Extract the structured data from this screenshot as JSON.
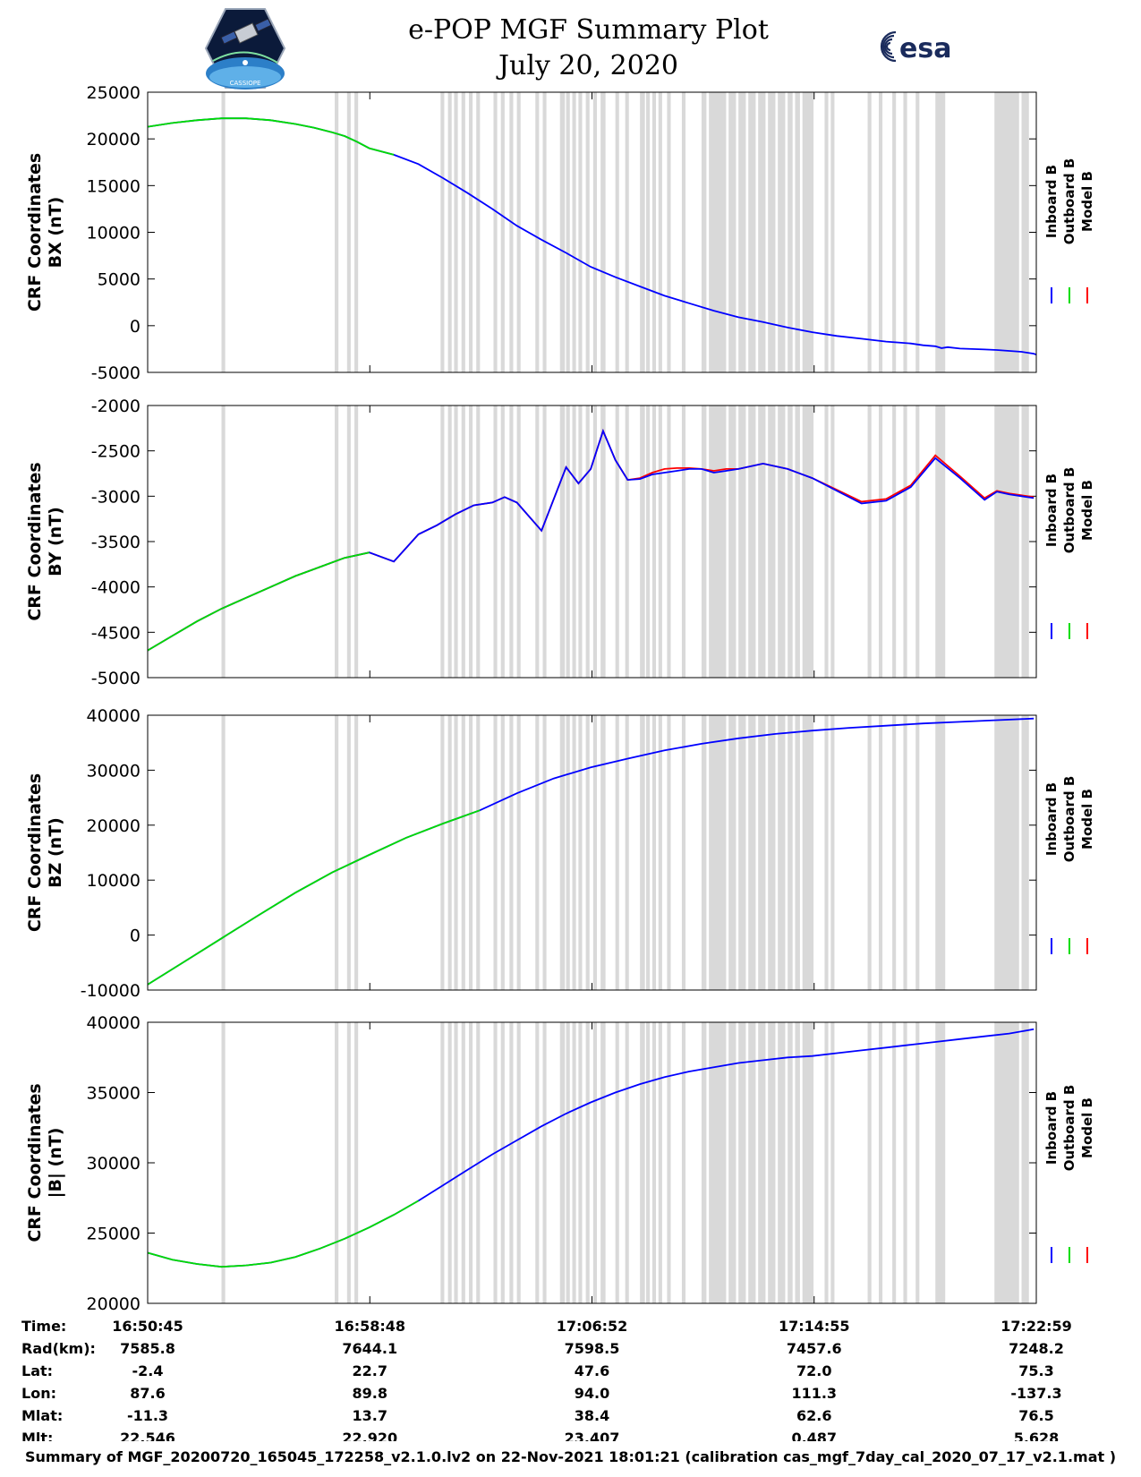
{
  "page": {
    "title": "e-POP MGF Summary Plot",
    "subtitle": "July 20, 2020",
    "esa_logo_text": "esa",
    "cassiope_logo_text": "CASSIOPE",
    "footer": "Summary of MGF_20200720_165045_172258_v2.1.0.lv2 on 22-Nov-2021 18:01:21 (calibration cas_mgf_7day_cal_2020_07_17_v2.1.mat )"
  },
  "colors": {
    "inboard": "#0000ff",
    "outboard": "#00dd00",
    "model": "#ff0000",
    "gap_shading": "#d9d9d9"
  },
  "chart_data": [
    {
      "type": "line",
      "ylabel": [
        "CRF Coordinates",
        "BX (nT)"
      ],
      "ylim": [
        -5000,
        25000
      ],
      "yticks": [
        "25000",
        "20000",
        "15000",
        "10000",
        "5000",
        "0",
        "-5000"
      ],
      "legend": [
        "Inboard B",
        "Outboard B",
        "Model B"
      ],
      "legend_position": "right",
      "x_minutes": [
        0,
        2,
        4,
        6,
        8,
        10,
        12,
        13.5,
        15,
        16,
        17,
        18,
        20,
        22,
        24,
        26,
        28,
        30,
        32,
        34,
        36,
        38,
        40,
        42,
        44,
        46,
        48,
        50,
        52,
        54,
        56,
        58,
        60,
        62,
        63,
        64,
        64.5,
        65,
        66,
        67,
        68,
        69,
        70,
        71,
        72,
        72.2
      ],
      "series": [
        {
          "name": "Inboard B",
          "values": [
            21300,
            21700,
            22000,
            22200,
            22200,
            22000,
            21600,
            21200,
            20700,
            20300,
            19700,
            19000,
            18300,
            17300,
            15800,
            14200,
            12500,
            10700,
            9200,
            7800,
            6300,
            5200,
            4200,
            3200,
            2400,
            1600,
            900,
            400,
            -200,
            -700,
            -1100,
            -1400,
            -1700,
            -1900,
            -2100,
            -2200,
            -2400,
            -2300,
            -2450,
            -2500,
            -2550,
            -2600,
            -2700,
            -2800,
            -3000,
            -3100
          ]
        },
        {
          "name": "Outboard B",
          "values": [
            21300,
            21700,
            22000,
            22200,
            22200,
            22000,
            21600,
            21200,
            20700,
            20300,
            19700,
            19000,
            18300
          ]
        }
      ]
    },
    {
      "type": "line",
      "ylabel": [
        "CRF Coordinates",
        "BY (nT)"
      ],
      "ylim": [
        -5000,
        -2000
      ],
      "yticks": [
        "-2000",
        "-2500",
        "-3000",
        "-3500",
        "-4000",
        "-4500",
        "-5000"
      ],
      "legend": [
        "Inboard B",
        "Outboard B",
        "Model B"
      ],
      "legend_position": "right",
      "x_minutes": [
        0,
        2,
        4,
        6,
        8,
        10,
        12,
        14,
        16,
        18,
        20,
        22,
        23.5,
        25,
        26.5,
        28,
        29,
        30,
        32,
        34,
        35,
        36,
        37,
        38,
        39,
        40,
        41,
        42,
        43,
        44,
        45,
        46,
        47,
        48,
        50,
        52,
        54,
        56,
        58,
        60,
        62,
        64,
        66,
        68,
        69,
        70,
        71,
        72
      ],
      "series": [
        {
          "name": "Inboard B",
          "values": [
            -4700,
            -4540,
            -4380,
            -4240,
            -4120,
            -4000,
            -3880,
            -3780,
            -3680,
            -3620,
            -3720,
            -3420,
            -3320,
            -3200,
            -3100,
            -3070,
            -3010,
            -3070,
            -3380,
            -2680,
            -2860,
            -2700,
            -2280,
            -2600,
            -2820,
            -2810,
            -2760,
            -2740,
            -2720,
            -2700,
            -2700,
            -2740,
            -2720,
            -2700,
            -2640,
            -2700,
            -2800,
            -2940,
            -3080,
            -3050,
            -2900,
            -2580,
            -2800,
            -3040,
            -2950,
            -2980,
            -3000,
            -3020
          ]
        },
        {
          "name": "Outboard B",
          "values": [
            -4700,
            -4540,
            -4380,
            -4240,
            -4120,
            -4000,
            -3880,
            -3780,
            -3680,
            -3620
          ]
        },
        {
          "name": "Model B",
          "values": [
            -4700,
            -4540,
            -4380,
            -4240,
            -4120,
            -4000,
            -3880,
            -3780,
            -3680,
            -3620,
            -3720,
            -3420,
            -3320,
            -3200,
            -3100,
            -3070,
            -3010,
            -3070,
            -3380,
            -2680,
            -2860,
            -2700,
            -2280,
            -2600,
            -2820,
            -2800,
            -2740,
            -2700,
            -2690,
            -2690,
            -2700,
            -2720,
            -2700,
            -2700,
            -2640,
            -2700,
            -2800,
            -2930,
            -3060,
            -3030,
            -2880,
            -2550,
            -2780,
            -3020,
            -2940,
            -2970,
            -2990,
            -3010
          ]
        }
      ]
    },
    {
      "type": "line",
      "ylabel": [
        "CRF Coordinates",
        "BZ (nT)"
      ],
      "ylim": [
        -10000,
        40000
      ],
      "yticks": [
        "40000",
        "30000",
        "20000",
        "10000",
        "0",
        "-10000"
      ],
      "legend": [
        "Inboard B",
        "Outboard B",
        "Model B"
      ],
      "legend_position": "right",
      "x_minutes": [
        0,
        3,
        6,
        9,
        12,
        15,
        18,
        21,
        24,
        27,
        30,
        33,
        36,
        39,
        42,
        45,
        48,
        51,
        54,
        57,
        60,
        63,
        66,
        69,
        72
      ],
      "series": [
        {
          "name": "Inboard B",
          "values": [
            -9000,
            -4800,
            -600,
            3600,
            7700,
            11400,
            14600,
            17700,
            20300,
            22700,
            25800,
            28500,
            30500,
            32100,
            33600,
            34800,
            35800,
            36600,
            37200,
            37700,
            38100,
            38500,
            38800,
            39100,
            39400
          ]
        },
        {
          "name": "Outboard B",
          "values": [
            -9000,
            -4800,
            -600,
            3600,
            7700,
            11400,
            14600,
            17700,
            20300,
            22700
          ]
        }
      ]
    },
    {
      "type": "line",
      "ylabel": [
        "CRF Coordinates",
        "|B| (nT)"
      ],
      "ylim": [
        20000,
        40000
      ],
      "yticks": [
        "40000",
        "35000",
        "30000",
        "25000",
        "20000"
      ],
      "legend": [
        "Inboard B",
        "Outboard B",
        "Model B"
      ],
      "legend_position": "right",
      "x_minutes": [
        0,
        2,
        4,
        6,
        8,
        10,
        12,
        14,
        16,
        18,
        20,
        22,
        24,
        26,
        28,
        30,
        32,
        34,
        36,
        38,
        40,
        42,
        44,
        46,
        48,
        50,
        52,
        54,
        56,
        58,
        60,
        62,
        64,
        66,
        68,
        70,
        72
      ],
      "series": [
        {
          "name": "Inboard B",
          "values": [
            23600,
            23100,
            22800,
            22600,
            22700,
            22900,
            23300,
            23900,
            24600,
            25400,
            26300,
            27300,
            28400,
            29500,
            30600,
            31600,
            32600,
            33500,
            34300,
            35000,
            35600,
            36100,
            36500,
            36800,
            37100,
            37300,
            37500,
            37600,
            37800,
            38000,
            38200,
            38400,
            38600,
            38800,
            39000,
            39200,
            39500
          ]
        },
        {
          "name": "Outboard B",
          "values": [
            23600,
            23100,
            22800,
            22600,
            22700,
            22900,
            23300,
            23900,
            24600,
            25400,
            26300,
            27300
          ]
        }
      ]
    }
  ],
  "shaded_intervals_minutes": [
    [
      6.0,
      6.3
    ],
    [
      15.2,
      15.5
    ],
    [
      16.2,
      16.5
    ],
    [
      16.8,
      17.1
    ],
    [
      23.8,
      24.1
    ],
    [
      24.4,
      24.7
    ],
    [
      24.9,
      25.2
    ],
    [
      25.5,
      25.8
    ],
    [
      26.1,
      26.4
    ],
    [
      26.7,
      27.0
    ],
    [
      28.1,
      28.4
    ],
    [
      28.7,
      29.0
    ],
    [
      29.4,
      29.7
    ],
    [
      30.0,
      30.3
    ],
    [
      31.5,
      31.8
    ],
    [
      32.1,
      32.4
    ],
    [
      33.5,
      33.9
    ],
    [
      34.0,
      34.3
    ],
    [
      34.5,
      34.8
    ],
    [
      35.0,
      35.3
    ],
    [
      35.6,
      35.9
    ],
    [
      36.2,
      36.5
    ],
    [
      36.8,
      37.2
    ],
    [
      38.0,
      38.3
    ],
    [
      38.8,
      39.1
    ],
    [
      40.0,
      40.4
    ],
    [
      40.5,
      40.8
    ],
    [
      41.0,
      41.3
    ],
    [
      41.5,
      41.8
    ],
    [
      42.2,
      42.5
    ],
    [
      43.4,
      43.7
    ],
    [
      45.0,
      45.4
    ],
    [
      45.6,
      47.0
    ],
    [
      47.2,
      47.8
    ],
    [
      48.0,
      48.6
    ],
    [
      48.8,
      49.4
    ],
    [
      49.6,
      50.2
    ],
    [
      50.4,
      51.0
    ],
    [
      51.2,
      51.8
    ],
    [
      52.0,
      52.4
    ],
    [
      52.6,
      53.0
    ],
    [
      53.2,
      54.1
    ],
    [
      55.0,
      55.3
    ],
    [
      55.5,
      55.8
    ],
    [
      58.5,
      58.8
    ],
    [
      59.4,
      59.7
    ],
    [
      60.5,
      60.8
    ],
    [
      61.4,
      61.7
    ],
    [
      62.4,
      62.7
    ],
    [
      64.0,
      64.8
    ],
    [
      68.8,
      70.8
    ],
    [
      71.0,
      71.6
    ]
  ],
  "xaxis_table": {
    "row_labels": [
      "Time:",
      "Rad(km):",
      "Lat:",
      "Lon:",
      "Mlat:",
      "Mlt:"
    ],
    "columns": [
      [
        "16:50:45",
        "7585.8",
        "-2.4",
        "87.6",
        "-11.3",
        "22.546"
      ],
      [
        "16:58:48",
        "7644.1",
        "22.7",
        "89.8",
        "13.7",
        "22.920"
      ],
      [
        "17:06:52",
        "7598.5",
        "47.6",
        "94.0",
        "38.4",
        "23.407"
      ],
      [
        "17:14:55",
        "7457.6",
        "72.0",
        "111.3",
        "62.6",
        "0.487"
      ],
      [
        "17:22:59",
        "7248.2",
        "75.3",
        "-137.3",
        "76.5",
        "5.628"
      ]
    ]
  }
}
